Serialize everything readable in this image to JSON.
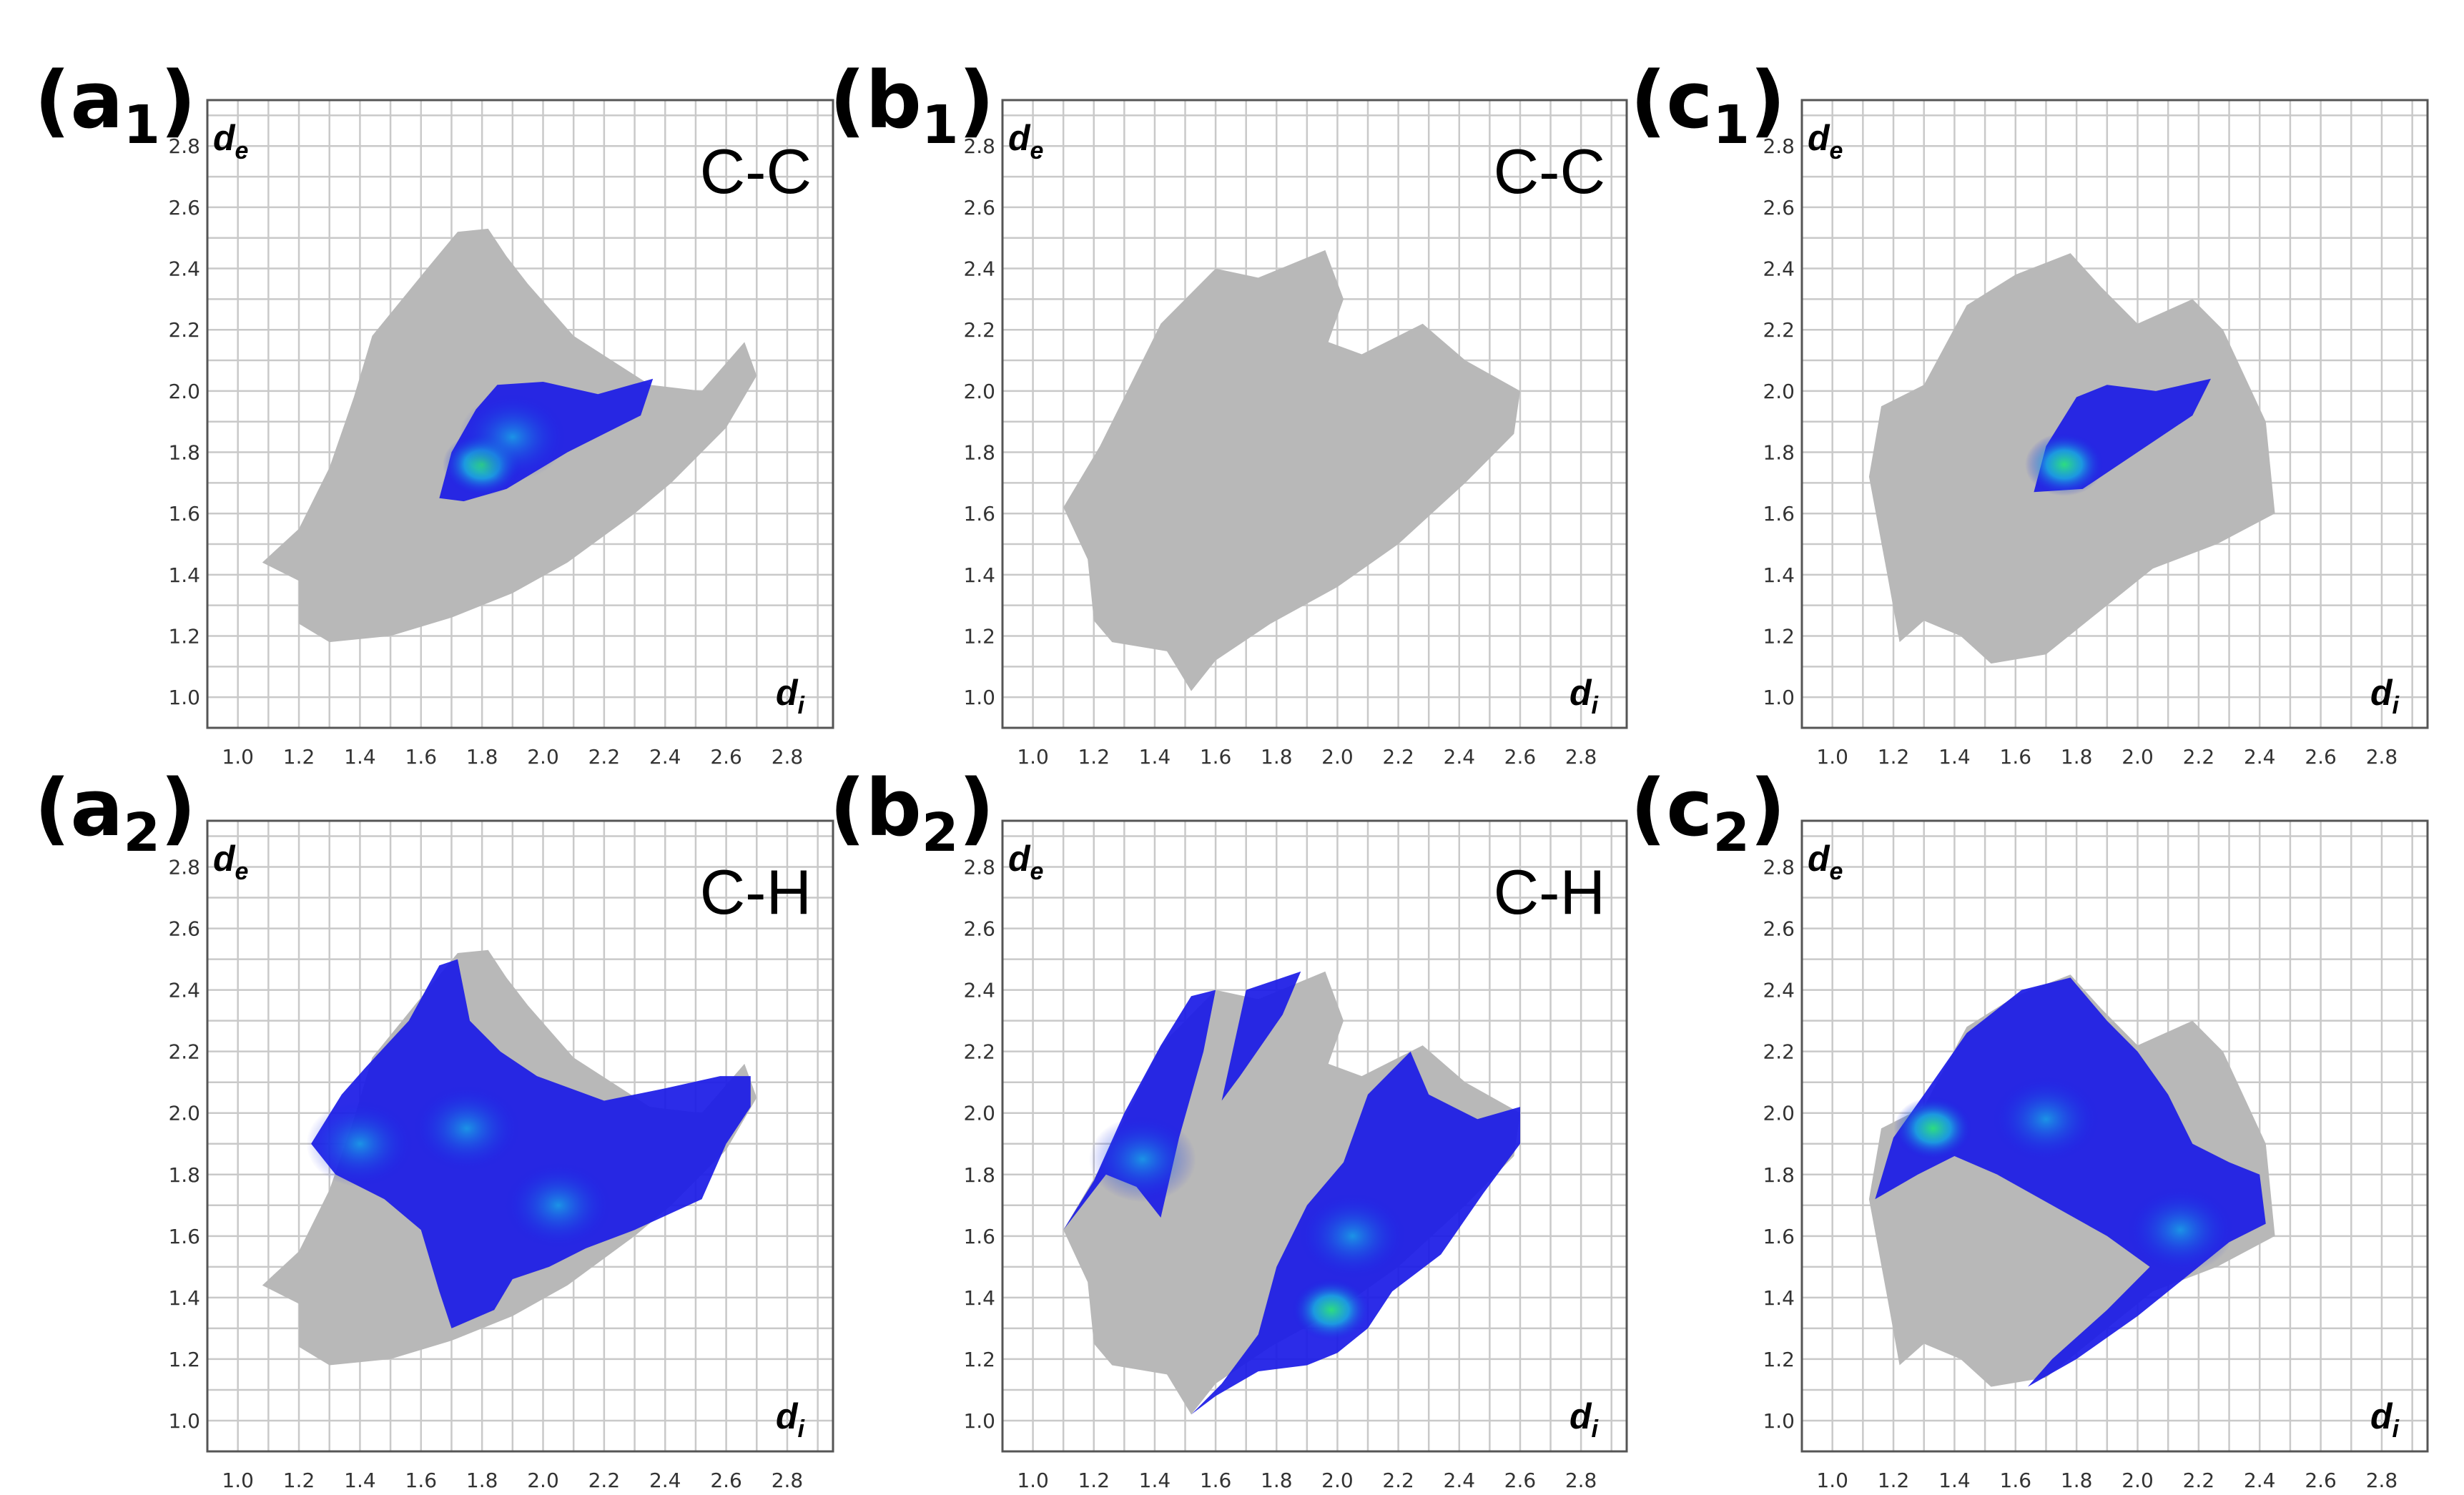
{
  "colors": {
    "background_region": "#b8b8b8",
    "highlight_low": "#1a1ae6",
    "highlight_mid": "#19a6e6",
    "highlight_high": "#2ee67a",
    "grid": "#c9c9c9",
    "frame": "#555555"
  },
  "chart_data": [
    {
      "id": "a1",
      "type": "heatmap",
      "panel_label": "(a",
      "panel_sub": "1",
      "panel_close": ")",
      "contact_label": "C-C",
      "xlabel": "d",
      "xlabel_sub": "i",
      "ylabel": "d",
      "ylabel_sub": "e",
      "xlim": [
        0.9,
        2.95
      ],
      "ylim": [
        0.9,
        2.95
      ],
      "x_ticks": [
        "1.0",
        "1.2",
        "1.4",
        "1.6",
        "1.8",
        "2.0",
        "2.2",
        "2.4",
        "2.6",
        "2.8"
      ],
      "y_ticks": [
        "1.0",
        "1.2",
        "1.4",
        "1.6",
        "1.8",
        "2.0",
        "2.2",
        "2.4",
        "2.6",
        "2.8"
      ],
      "full_fingerprint": [
        [
          1.08,
          1.44
        ],
        [
          1.2,
          1.55
        ],
        [
          1.3,
          1.75
        ],
        [
          1.38,
          1.98
        ],
        [
          1.44,
          2.18
        ],
        [
          1.62,
          2.4
        ],
        [
          1.72,
          2.52
        ],
        [
          1.82,
          2.53
        ],
        [
          1.88,
          2.44
        ],
        [
          1.95,
          2.35
        ],
        [
          2.1,
          2.18
        ],
        [
          2.35,
          2.02
        ],
        [
          2.52,
          2.0
        ],
        [
          2.66,
          2.16
        ],
        [
          2.7,
          2.05
        ],
        [
          2.6,
          1.88
        ],
        [
          2.42,
          1.7
        ],
        [
          2.3,
          1.6
        ],
        [
          2.08,
          1.44
        ],
        [
          1.9,
          1.34
        ],
        [
          1.7,
          1.26
        ],
        [
          1.5,
          1.2
        ],
        [
          1.3,
          1.18
        ],
        [
          1.2,
          1.24
        ],
        [
          1.2,
          1.38
        ]
      ],
      "contact_regions": [
        [
          [
            1.66,
            1.65
          ],
          [
            1.7,
            1.8
          ],
          [
            1.78,
            1.94
          ],
          [
            1.85,
            2.02
          ],
          [
            2.0,
            2.03
          ],
          [
            2.18,
            1.99
          ],
          [
            2.36,
            2.04
          ],
          [
            2.32,
            1.92
          ],
          [
            2.08,
            1.8
          ],
          [
            1.88,
            1.68
          ],
          [
            1.74,
            1.64
          ]
        ]
      ],
      "hot_spots": [
        [
          1.8,
          1.76,
          "high"
        ],
        [
          1.9,
          1.85,
          "mid"
        ]
      ]
    },
    {
      "id": "b1",
      "type": "heatmap",
      "panel_label": "(b",
      "panel_sub": "1",
      "panel_close": ")",
      "contact_label": "C-C",
      "xlabel": "d",
      "xlabel_sub": "i",
      "ylabel": "d",
      "ylabel_sub": "e",
      "xlim": [
        0.9,
        2.95
      ],
      "ylim": [
        0.9,
        2.95
      ],
      "x_ticks": [
        "1.0",
        "1.2",
        "1.4",
        "1.6",
        "1.8",
        "2.0",
        "2.2",
        "2.4",
        "2.6",
        "2.8"
      ],
      "y_ticks": [
        "1.0",
        "1.2",
        "1.4",
        "1.6",
        "1.8",
        "2.0",
        "2.2",
        "2.4",
        "2.6",
        "2.8"
      ],
      "full_fingerprint": [
        [
          1.1,
          1.62
        ],
        [
          1.22,
          1.82
        ],
        [
          1.32,
          2.02
        ],
        [
          1.42,
          2.22
        ],
        [
          1.6,
          2.4
        ],
        [
          1.74,
          2.37
        ],
        [
          1.96,
          2.46
        ],
        [
          2.02,
          2.3
        ],
        [
          1.97,
          2.16
        ],
        [
          2.08,
          2.12
        ],
        [
          2.28,
          2.22
        ],
        [
          2.42,
          2.1
        ],
        [
          2.6,
          2.0
        ],
        [
          2.58,
          1.86
        ],
        [
          2.42,
          1.7
        ],
        [
          2.2,
          1.5
        ],
        [
          2.0,
          1.36
        ],
        [
          1.78,
          1.24
        ],
        [
          1.6,
          1.12
        ],
        [
          1.52,
          1.02
        ],
        [
          1.44,
          1.15
        ],
        [
          1.26,
          1.18
        ],
        [
          1.2,
          1.25
        ],
        [
          1.18,
          1.45
        ]
      ],
      "contact_regions": [],
      "hot_spots": []
    },
    {
      "id": "c1",
      "type": "heatmap",
      "panel_label": "(c",
      "panel_sub": "1",
      "panel_close": ")",
      "contact_label": "",
      "xlabel": "d",
      "xlabel_sub": "i",
      "ylabel": "d",
      "ylabel_sub": "e",
      "xlim": [
        0.9,
        2.95
      ],
      "ylim": [
        0.9,
        2.95
      ],
      "x_ticks": [
        "1.0",
        "1.2",
        "1.4",
        "1.6",
        "1.8",
        "2.0",
        "2.2",
        "2.4",
        "2.6",
        "2.8"
      ],
      "y_ticks": [
        "1.0",
        "1.2",
        "1.4",
        "1.6",
        "1.8",
        "2.0",
        "2.2",
        "2.4",
        "2.6",
        "2.8"
      ],
      "full_fingerprint": [
        [
          1.12,
          1.72
        ],
        [
          1.16,
          1.95
        ],
        [
          1.3,
          2.02
        ],
        [
          1.44,
          2.28
        ],
        [
          1.6,
          2.38
        ],
        [
          1.78,
          2.45
        ],
        [
          1.88,
          2.34
        ],
        [
          2.0,
          2.22
        ],
        [
          2.18,
          2.3
        ],
        [
          2.28,
          2.2
        ],
        [
          2.42,
          1.9
        ],
        [
          2.45,
          1.6
        ],
        [
          2.26,
          1.5
        ],
        [
          2.05,
          1.42
        ],
        [
          1.9,
          1.3
        ],
        [
          1.7,
          1.14
        ],
        [
          1.52,
          1.11
        ],
        [
          1.42,
          1.2
        ],
        [
          1.3,
          1.25
        ],
        [
          1.22,
          1.18
        ],
        [
          1.18,
          1.4
        ]
      ],
      "contact_regions": [
        [
          [
            1.66,
            1.67
          ],
          [
            1.7,
            1.82
          ],
          [
            1.8,
            1.98
          ],
          [
            1.9,
            2.02
          ],
          [
            2.06,
            2.0
          ],
          [
            2.24,
            2.04
          ],
          [
            2.18,
            1.92
          ],
          [
            2.0,
            1.8
          ],
          [
            1.82,
            1.68
          ]
        ]
      ],
      "hot_spots": [
        [
          1.76,
          1.76,
          "high"
        ]
      ]
    },
    {
      "id": "a2",
      "type": "heatmap",
      "panel_label": "(a",
      "panel_sub": "2",
      "panel_close": ")",
      "contact_label": "C-H",
      "xlabel": "d",
      "xlabel_sub": "i",
      "ylabel": "d",
      "ylabel_sub": "e",
      "xlim": [
        0.9,
        2.95
      ],
      "ylim": [
        0.9,
        2.95
      ],
      "x_ticks": [
        "1.0",
        "1.2",
        "1.4",
        "1.6",
        "1.8",
        "2.0",
        "2.2",
        "2.4",
        "2.6",
        "2.8"
      ],
      "y_ticks": [
        "1.0",
        "1.2",
        "1.4",
        "1.6",
        "1.8",
        "2.0",
        "2.2",
        "2.4",
        "2.6",
        "2.8"
      ],
      "full_fingerprint": [
        [
          1.08,
          1.44
        ],
        [
          1.2,
          1.55
        ],
        [
          1.3,
          1.75
        ],
        [
          1.38,
          1.98
        ],
        [
          1.44,
          2.18
        ],
        [
          1.62,
          2.4
        ],
        [
          1.72,
          2.52
        ],
        [
          1.82,
          2.53
        ],
        [
          1.88,
          2.44
        ],
        [
          1.95,
          2.35
        ],
        [
          2.1,
          2.18
        ],
        [
          2.35,
          2.02
        ],
        [
          2.52,
          2.0
        ],
        [
          2.66,
          2.16
        ],
        [
          2.7,
          2.05
        ],
        [
          2.6,
          1.88
        ],
        [
          2.42,
          1.7
        ],
        [
          2.3,
          1.6
        ],
        [
          2.08,
          1.44
        ],
        [
          1.9,
          1.34
        ],
        [
          1.7,
          1.26
        ],
        [
          1.5,
          1.2
        ],
        [
          1.3,
          1.18
        ],
        [
          1.2,
          1.24
        ],
        [
          1.2,
          1.38
        ]
      ],
      "contact_regions": [
        [
          [
            1.24,
            1.9
          ],
          [
            1.34,
            2.06
          ],
          [
            1.42,
            2.15
          ],
          [
            1.56,
            2.3
          ],
          [
            1.66,
            2.48
          ],
          [
            1.72,
            2.5
          ],
          [
            1.76,
            2.3
          ],
          [
            1.86,
            2.2
          ],
          [
            1.98,
            2.12
          ],
          [
            2.2,
            2.04
          ],
          [
            2.4,
            2.08
          ],
          [
            2.58,
            2.12
          ],
          [
            2.68,
            2.12
          ],
          [
            2.68,
            2.02
          ],
          [
            2.6,
            1.9
          ],
          [
            2.52,
            1.72
          ],
          [
            2.3,
            1.62
          ],
          [
            2.14,
            1.56
          ],
          [
            2.02,
            1.5
          ],
          [
            1.9,
            1.46
          ],
          [
            1.84,
            1.36
          ],
          [
            1.7,
            1.3
          ],
          [
            1.66,
            1.42
          ],
          [
            1.6,
            1.62
          ],
          [
            1.48,
            1.72
          ],
          [
            1.32,
            1.8
          ]
        ]
      ],
      "hot_spots": [
        [
          1.75,
          1.95,
          "mid"
        ],
        [
          2.05,
          1.7,
          "mid"
        ],
        [
          1.4,
          1.9,
          "mid"
        ]
      ]
    },
    {
      "id": "b2",
      "type": "heatmap",
      "panel_label": "(b",
      "panel_sub": "2",
      "panel_close": ")",
      "contact_label": "C-H",
      "xlabel": "d",
      "xlabel_sub": "i",
      "ylabel": "d",
      "ylabel_sub": "e",
      "xlim": [
        0.9,
        2.95
      ],
      "ylim": [
        0.9,
        2.95
      ],
      "x_ticks": [
        "1.0",
        "1.2",
        "1.4",
        "1.6",
        "1.8",
        "2.0",
        "2.2",
        "2.4",
        "2.6",
        "2.8"
      ],
      "y_ticks": [
        "1.0",
        "1.2",
        "1.4",
        "1.6",
        "1.8",
        "2.0",
        "2.2",
        "2.4",
        "2.6",
        "2.8"
      ],
      "full_fingerprint": [
        [
          1.1,
          1.62
        ],
        [
          1.22,
          1.82
        ],
        [
          1.32,
          2.02
        ],
        [
          1.42,
          2.22
        ],
        [
          1.6,
          2.4
        ],
        [
          1.74,
          2.37
        ],
        [
          1.96,
          2.46
        ],
        [
          2.02,
          2.3
        ],
        [
          1.97,
          2.16
        ],
        [
          2.08,
          2.12
        ],
        [
          2.28,
          2.22
        ],
        [
          2.42,
          2.1
        ],
        [
          2.6,
          2.0
        ],
        [
          2.58,
          1.86
        ],
        [
          2.42,
          1.7
        ],
        [
          2.2,
          1.5
        ],
        [
          2.0,
          1.36
        ],
        [
          1.78,
          1.24
        ],
        [
          1.6,
          1.12
        ],
        [
          1.52,
          1.02
        ],
        [
          1.44,
          1.15
        ],
        [
          1.26,
          1.18
        ],
        [
          1.2,
          1.25
        ],
        [
          1.18,
          1.45
        ]
      ],
      "contact_regions": [
        [
          [
            1.1,
            1.62
          ],
          [
            1.2,
            1.78
          ],
          [
            1.3,
            2.0
          ],
          [
            1.42,
            2.22
          ],
          [
            1.52,
            2.38
          ],
          [
            1.6,
            2.4
          ],
          [
            1.56,
            2.2
          ],
          [
            1.48,
            1.92
          ],
          [
            1.42,
            1.66
          ],
          [
            1.34,
            1.76
          ],
          [
            1.24,
            1.8
          ]
        ],
        [
          [
            1.7,
            2.4
          ],
          [
            1.88,
            2.46
          ],
          [
            1.82,
            2.32
          ],
          [
            1.68,
            2.12
          ],
          [
            1.62,
            2.04
          ]
        ],
        [
          [
            1.52,
            1.02
          ],
          [
            1.62,
            1.12
          ],
          [
            1.74,
            1.28
          ],
          [
            1.8,
            1.5
          ],
          [
            1.9,
            1.7
          ],
          [
            2.02,
            1.84
          ],
          [
            2.1,
            2.06
          ],
          [
            2.24,
            2.2
          ],
          [
            2.3,
            2.06
          ],
          [
            2.46,
            1.98
          ],
          [
            2.6,
            2.02
          ],
          [
            2.6,
            1.9
          ],
          [
            2.48,
            1.74
          ],
          [
            2.34,
            1.54
          ],
          [
            2.18,
            1.42
          ],
          [
            2.1,
            1.3
          ],
          [
            2.0,
            1.22
          ],
          [
            1.9,
            1.18
          ],
          [
            1.74,
            1.16
          ],
          [
            1.6,
            1.08
          ]
        ]
      ],
      "hot_spots": [
        [
          1.98,
          1.36,
          "high"
        ],
        [
          2.05,
          1.6,
          "mid"
        ],
        [
          1.36,
          1.85,
          "mid"
        ]
      ]
    },
    {
      "id": "c2",
      "type": "heatmap",
      "panel_label": "(c",
      "panel_sub": "2",
      "panel_close": ")",
      "contact_label": "",
      "xlabel": "d",
      "xlabel_sub": "i",
      "ylabel": "d",
      "ylabel_sub": "e",
      "xlim": [
        0.9,
        2.95
      ],
      "ylim": [
        0.9,
        2.95
      ],
      "x_ticks": [
        "1.0",
        "1.2",
        "1.4",
        "1.6",
        "1.8",
        "2.0",
        "2.2",
        "2.4",
        "2.6",
        "2.8"
      ],
      "y_ticks": [
        "1.0",
        "1.2",
        "1.4",
        "1.6",
        "1.8",
        "2.0",
        "2.2",
        "2.4",
        "2.6",
        "2.8"
      ],
      "full_fingerprint": [
        [
          1.12,
          1.72
        ],
        [
          1.16,
          1.95
        ],
        [
          1.3,
          2.02
        ],
        [
          1.44,
          2.28
        ],
        [
          1.6,
          2.38
        ],
        [
          1.78,
          2.45
        ],
        [
          1.88,
          2.34
        ],
        [
          2.0,
          2.22
        ],
        [
          2.18,
          2.3
        ],
        [
          2.28,
          2.2
        ],
        [
          2.42,
          1.9
        ],
        [
          2.45,
          1.6
        ],
        [
          2.26,
          1.5
        ],
        [
          2.05,
          1.42
        ],
        [
          1.9,
          1.3
        ],
        [
          1.7,
          1.14
        ],
        [
          1.52,
          1.11
        ],
        [
          1.42,
          1.2
        ],
        [
          1.3,
          1.25
        ],
        [
          1.22,
          1.18
        ],
        [
          1.18,
          1.4
        ]
      ],
      "contact_regions": [
        [
          [
            1.14,
            1.72
          ],
          [
            1.2,
            1.92
          ],
          [
            1.3,
            2.06
          ],
          [
            1.44,
            2.26
          ],
          [
            1.62,
            2.4
          ],
          [
            1.78,
            2.44
          ],
          [
            1.9,
            2.3
          ],
          [
            2.0,
            2.2
          ],
          [
            2.1,
            2.06
          ],
          [
            2.18,
            1.9
          ],
          [
            2.3,
            1.84
          ],
          [
            2.4,
            1.8
          ],
          [
            2.42,
            1.64
          ],
          [
            2.3,
            1.58
          ],
          [
            2.2,
            1.5
          ],
          [
            2.0,
            1.34
          ],
          [
            1.8,
            1.2
          ],
          [
            1.64,
            1.11
          ],
          [
            1.72,
            1.2
          ],
          [
            1.9,
            1.36
          ],
          [
            2.04,
            1.5
          ],
          [
            1.9,
            1.6
          ],
          [
            1.72,
            1.7
          ],
          [
            1.54,
            1.8
          ],
          [
            1.4,
            1.86
          ],
          [
            1.28,
            1.8
          ]
        ]
      ],
      "hot_spots": [
        [
          1.33,
          1.95,
          "high"
        ],
        [
          2.14,
          1.62,
          "mid"
        ],
        [
          1.7,
          1.98,
          "mid"
        ]
      ]
    }
  ]
}
